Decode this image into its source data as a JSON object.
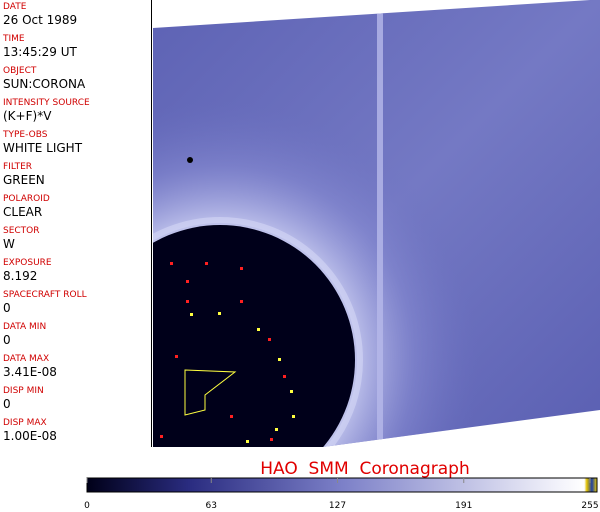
{
  "panel": {
    "fields": [
      {
        "label": "DATE",
        "value": "26 Oct 1989"
      },
      {
        "label": "TIME",
        "value": "13:45:29 UT"
      },
      {
        "label": "OBJECT",
        "value": "SUN:CORONA"
      },
      {
        "label": "INTENSITY SOURCE",
        "value": "(K+F)*V"
      },
      {
        "label": "TYPE-OBS",
        "value": "WHITE LIGHT"
      },
      {
        "label": "FILTER",
        "value": "GREEN"
      },
      {
        "label": "POLAROID",
        "value": "CLEAR"
      },
      {
        "label": "SECTOR",
        "value": "W"
      },
      {
        "label": "EXPOSURE",
        "value": "8.192"
      },
      {
        "label": "SPACECRAFT ROLL",
        "value": "0"
      },
      {
        "label": "DATA MIN",
        "value": "0"
      },
      {
        "label": "DATA MAX",
        "value": "3.41E-08"
      },
      {
        "label": "DISP MIN",
        "value": "0"
      },
      {
        "label": "DISP MAX",
        "value": "1.00E-08"
      }
    ]
  },
  "caption": "HAO  SMM  Coronagraph",
  "colorbar": {
    "range": [
      0,
      255
    ],
    "ticks": [
      0,
      63,
      127,
      191,
      255
    ]
  }
}
